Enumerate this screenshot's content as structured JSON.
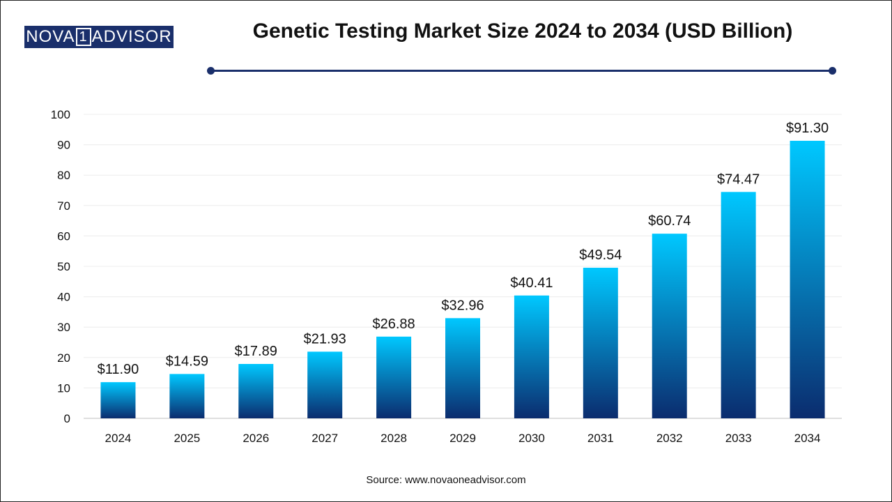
{
  "logo": {
    "left": "NOVA",
    "mid": "1",
    "right": "ADVISOR"
  },
  "colors": {
    "brand": "#1a2f6b",
    "bar_top": "#00c8ff",
    "bar_bottom": "#0b2c6e"
  },
  "chart_data": {
    "type": "bar",
    "title": "Genetic Testing Market Size 2024 to 2034 (USD Billion)",
    "categories": [
      "2024",
      "2025",
      "2026",
      "2027",
      "2028",
      "2029",
      "2030",
      "2031",
      "2032",
      "2033",
      "2034"
    ],
    "values": [
      11.9,
      14.59,
      17.89,
      21.93,
      26.88,
      32.96,
      40.41,
      49.54,
      60.74,
      74.47,
      91.3
    ],
    "data_labels": [
      "$11.90",
      "$14.59",
      "$17.89",
      "$21.93",
      "$26.88",
      "$32.96",
      "$40.41",
      "$49.54",
      "$60.74",
      "$74.47",
      "$91.30"
    ],
    "yticks": [
      0,
      10,
      20,
      30,
      40,
      50,
      60,
      70,
      80,
      90,
      100
    ],
    "ylim": [
      0,
      100
    ],
    "xlabel": "",
    "ylabel": "",
    "grid": true,
    "legend": "none"
  },
  "footer": {
    "source": "Source: www.novaoneadvisor.com"
  }
}
